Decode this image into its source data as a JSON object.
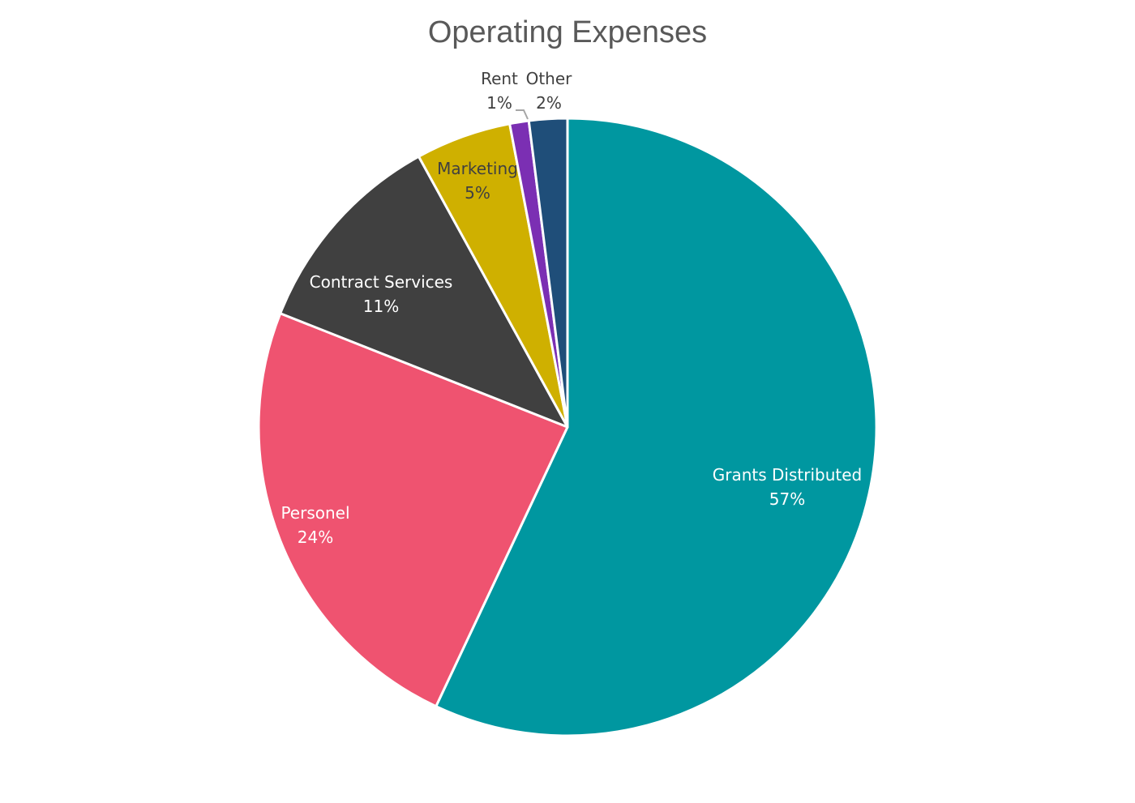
{
  "chart_data": {
    "type": "pie",
    "title": "Operating Expenses",
    "start_angle_deg": 0,
    "direction": "clockwise",
    "slices": [
      {
        "label": "Grants Distributed",
        "value": 57,
        "value_label": "57%",
        "color": "#0097a0",
        "text_color": "#ffffff"
      },
      {
        "label": "Personel",
        "value": 24,
        "value_label": "24%",
        "color": "#ef5370",
        "text_color": "#ffffff"
      },
      {
        "label": "Contract Services",
        "value": 11,
        "value_label": "11%",
        "color": "#404040",
        "text_color": "#ffffff"
      },
      {
        "label": "Marketing",
        "value": 5,
        "value_label": "5%",
        "color": "#cfb000",
        "text_color": "#404040"
      },
      {
        "label": "Rent",
        "value": 1,
        "value_label": "1%",
        "color": "#7b2fb3",
        "text_color": "#404040"
      },
      {
        "label": "Other",
        "value": 2,
        "value_label": "2%",
        "color": "#1f4e79",
        "text_color": "#404040"
      }
    ],
    "legend": "none"
  }
}
